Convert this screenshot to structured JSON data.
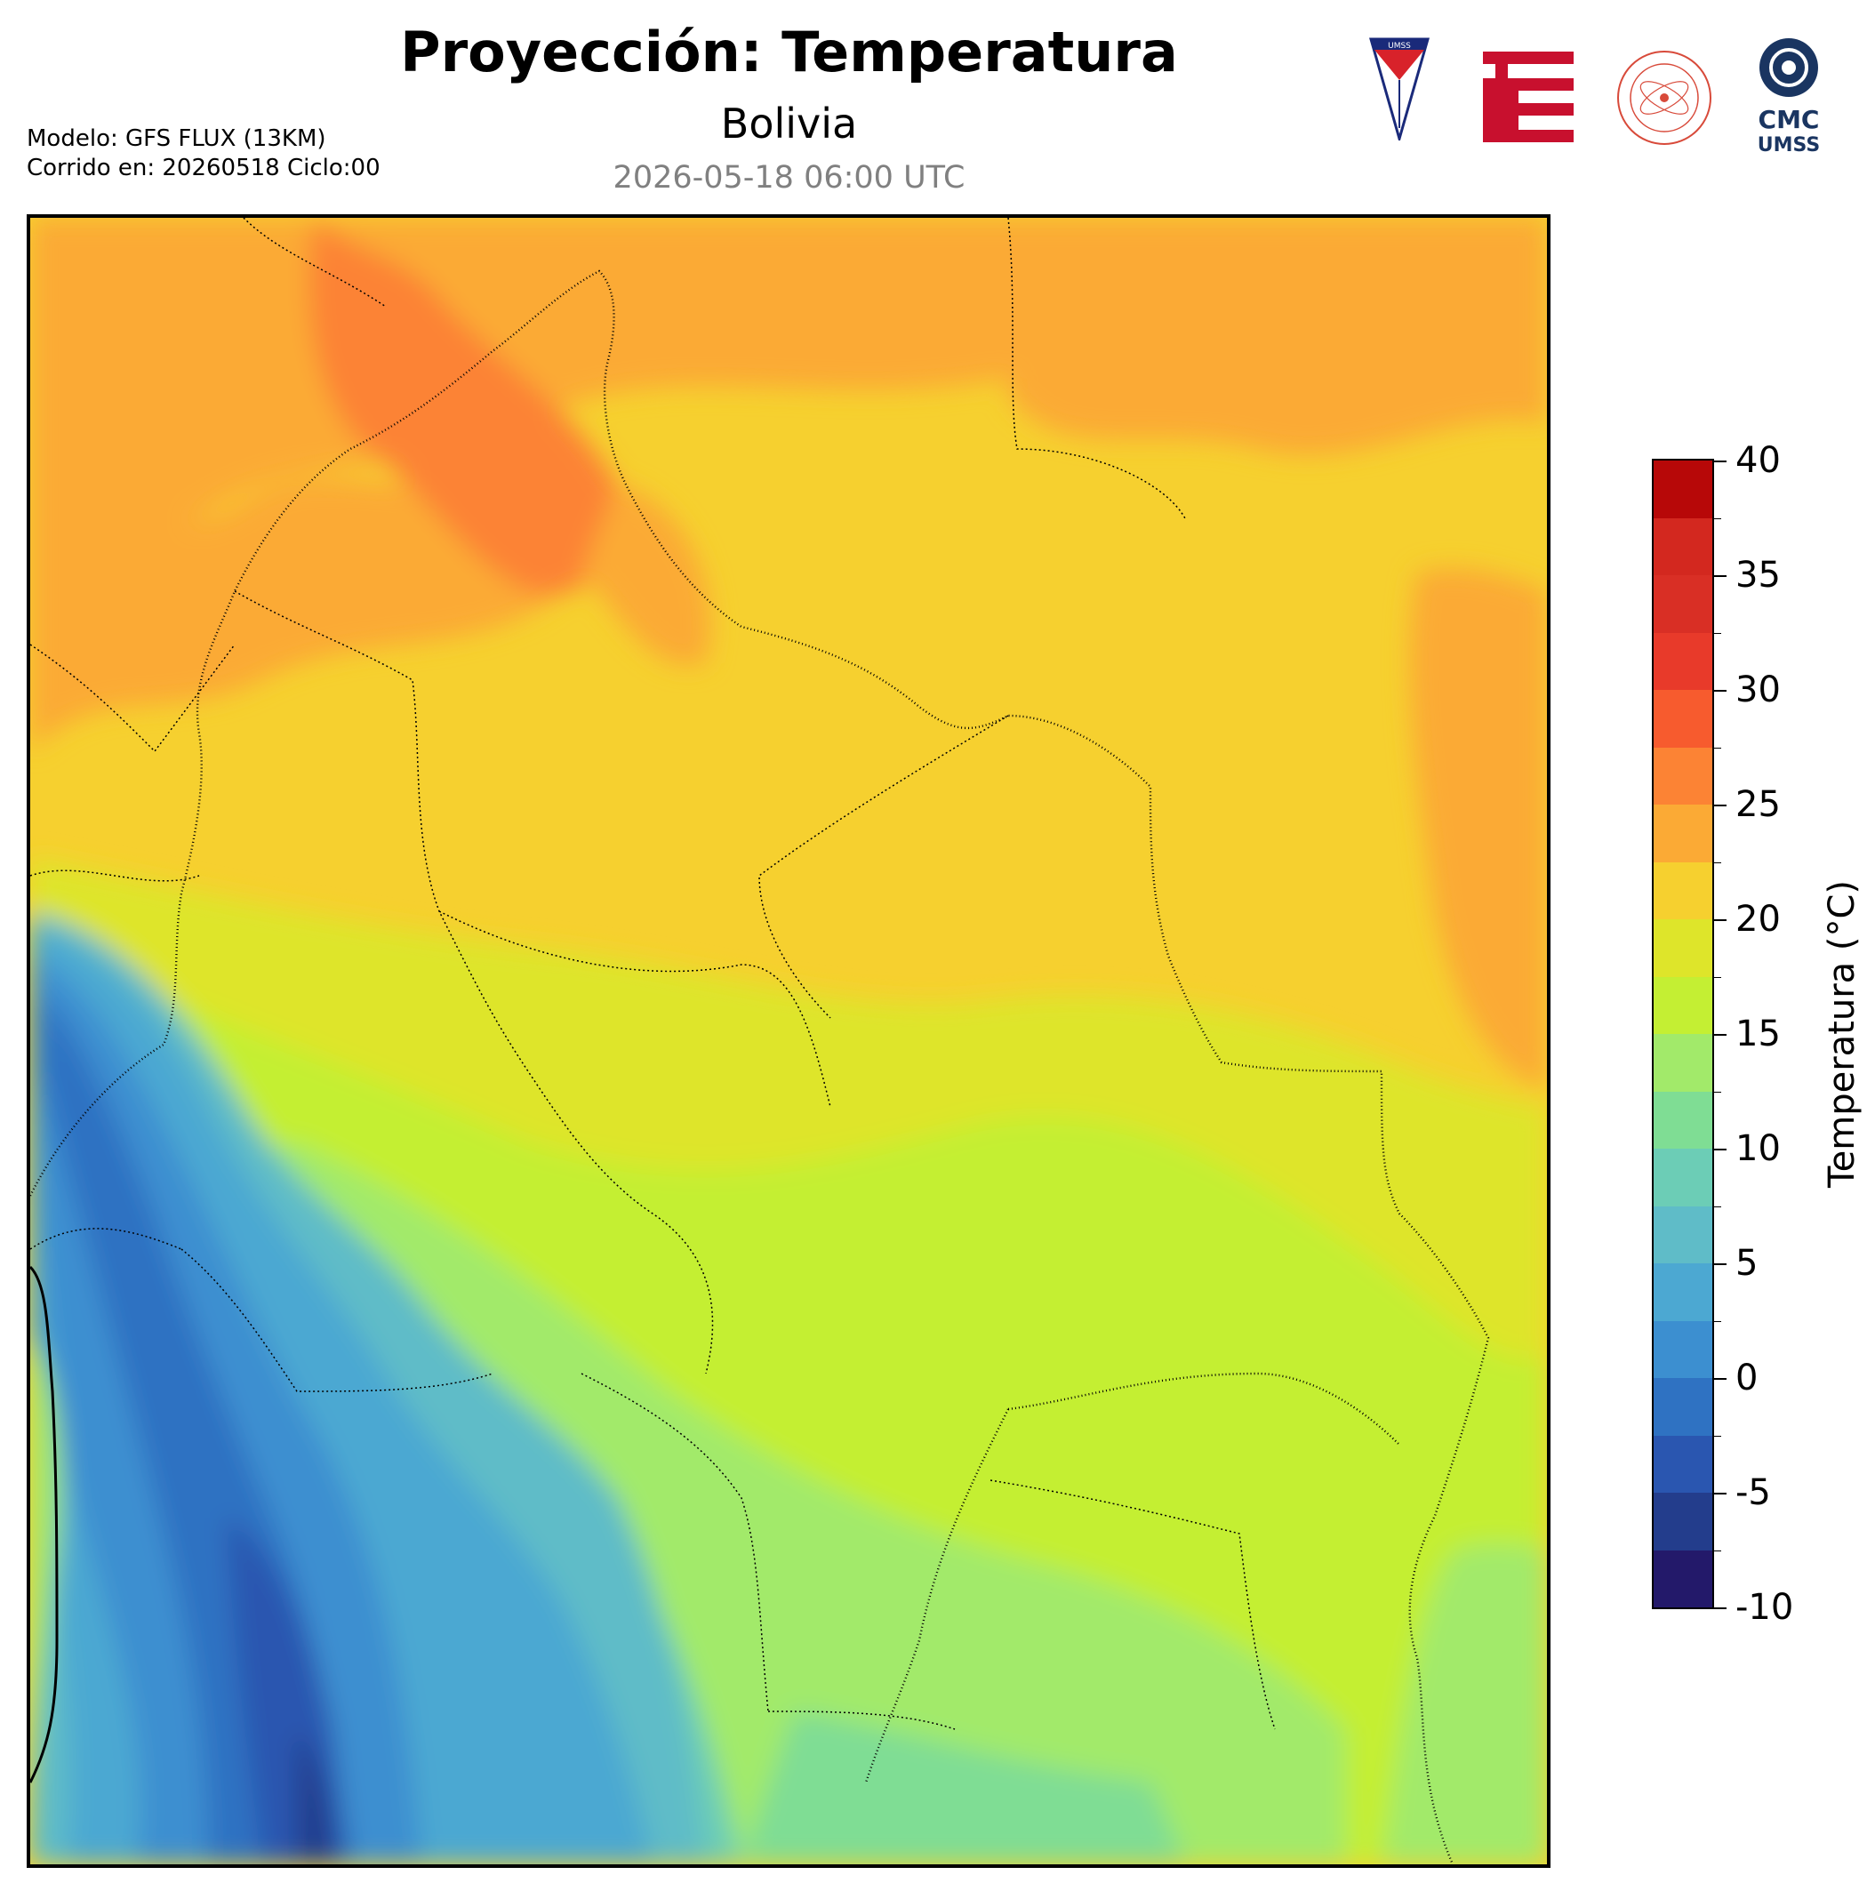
{
  "header": {
    "title": "Proyección: Temperatura",
    "subtitle": "Bolivia",
    "timestamp": "2026-05-18 06:00 UTC",
    "model_line": "Modelo: GFS FLUX (13KM)",
    "run_line": "Corrido en: 20260518 Ciclo:00"
  },
  "logos": {
    "umss_text": "UMSS",
    "cmc_text": "CMC",
    "cmc_sub": "UMSS"
  },
  "colorbar": {
    "label": "Temperatura (°C)",
    "min": -10,
    "max": 40,
    "step": 2.5,
    "ticks": [
      "40",
      "35",
      "30",
      "25",
      "20",
      "15",
      "10",
      "5",
      "0",
      "-5",
      "-10"
    ],
    "colors": [
      "#23196a",
      "#233d8c",
      "#2a56b0",
      "#2f72c2",
      "#3c8fd0",
      "#4ca8d2",
      "#5fbcc8",
      "#6ccdb6",
      "#7fdd94",
      "#a2ea6a",
      "#c4ef33",
      "#dee52a",
      "#f6d02f",
      "#fbaa35",
      "#fc8334",
      "#f75b2e",
      "#e83a2a",
      "#d92f25",
      "#d3281f",
      "#b70808"
    ]
  }
}
